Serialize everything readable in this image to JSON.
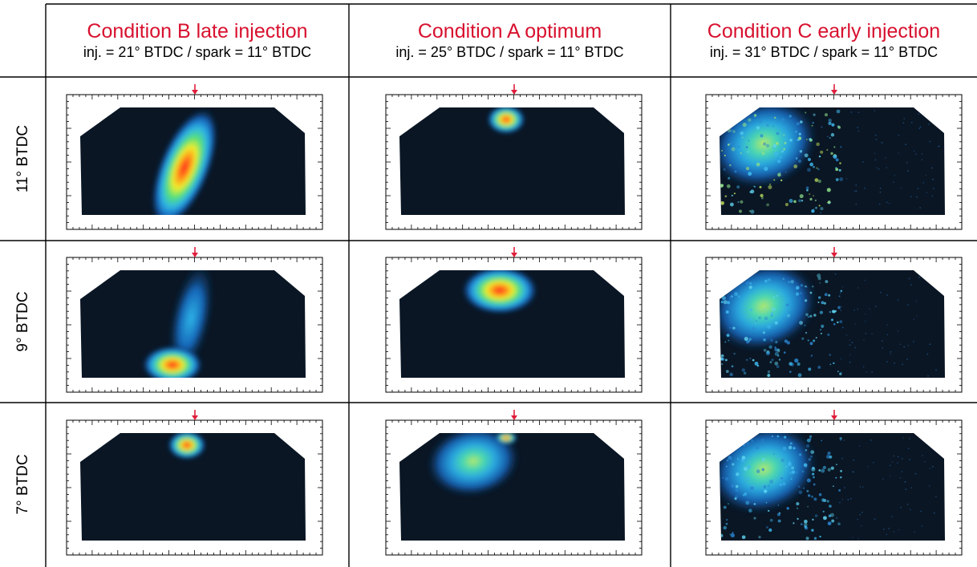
{
  "columns": [
    {
      "title": "Condition B late injection",
      "subtitle": "inj. = 21° BTDC / spark = 11° BTDC"
    },
    {
      "title": "Condition A optimum",
      "subtitle": "inj. = 25° BTDC / spark = 11° BTDC"
    },
    {
      "title": "Condition C early injection",
      "subtitle": "inj. = 31° BTDC / spark = 11° BTDC"
    }
  ],
  "rows": [
    {
      "label": "11° BTDC"
    },
    {
      "label": "9° BTDC"
    },
    {
      "label": "7° BTDC"
    }
  ],
  "colors": {
    "title_red": "#d8112f",
    "arrow_red": "#e01e3c",
    "chamber_dark": "#0a1624",
    "grid_line": "#000000"
  },
  "images": [
    [
      {
        "distribution": "plume-along-spray-axis",
        "peak": "high"
      },
      {
        "distribution": "compact-kernel-at-spark-plug",
        "peak": "high"
      },
      {
        "distribution": "dispersed-speckle-left-side",
        "peak": "medium"
      }
    ],
    [
      {
        "distribution": "plume-with-lower-concentration",
        "peak": "high"
      },
      {
        "distribution": "expanded-kernel-below-plug",
        "peak": "high"
      },
      {
        "distribution": "dispersed-speckle-left-side",
        "peak": "low"
      }
    ],
    [
      {
        "distribution": "compact-kernel-at-spark-plug",
        "peak": "high"
      },
      {
        "distribution": "diffuse-cloud-left-of-plug",
        "peak": "medium"
      },
      {
        "distribution": "dispersed-speckle-left-side",
        "peak": "low"
      }
    ]
  ]
}
